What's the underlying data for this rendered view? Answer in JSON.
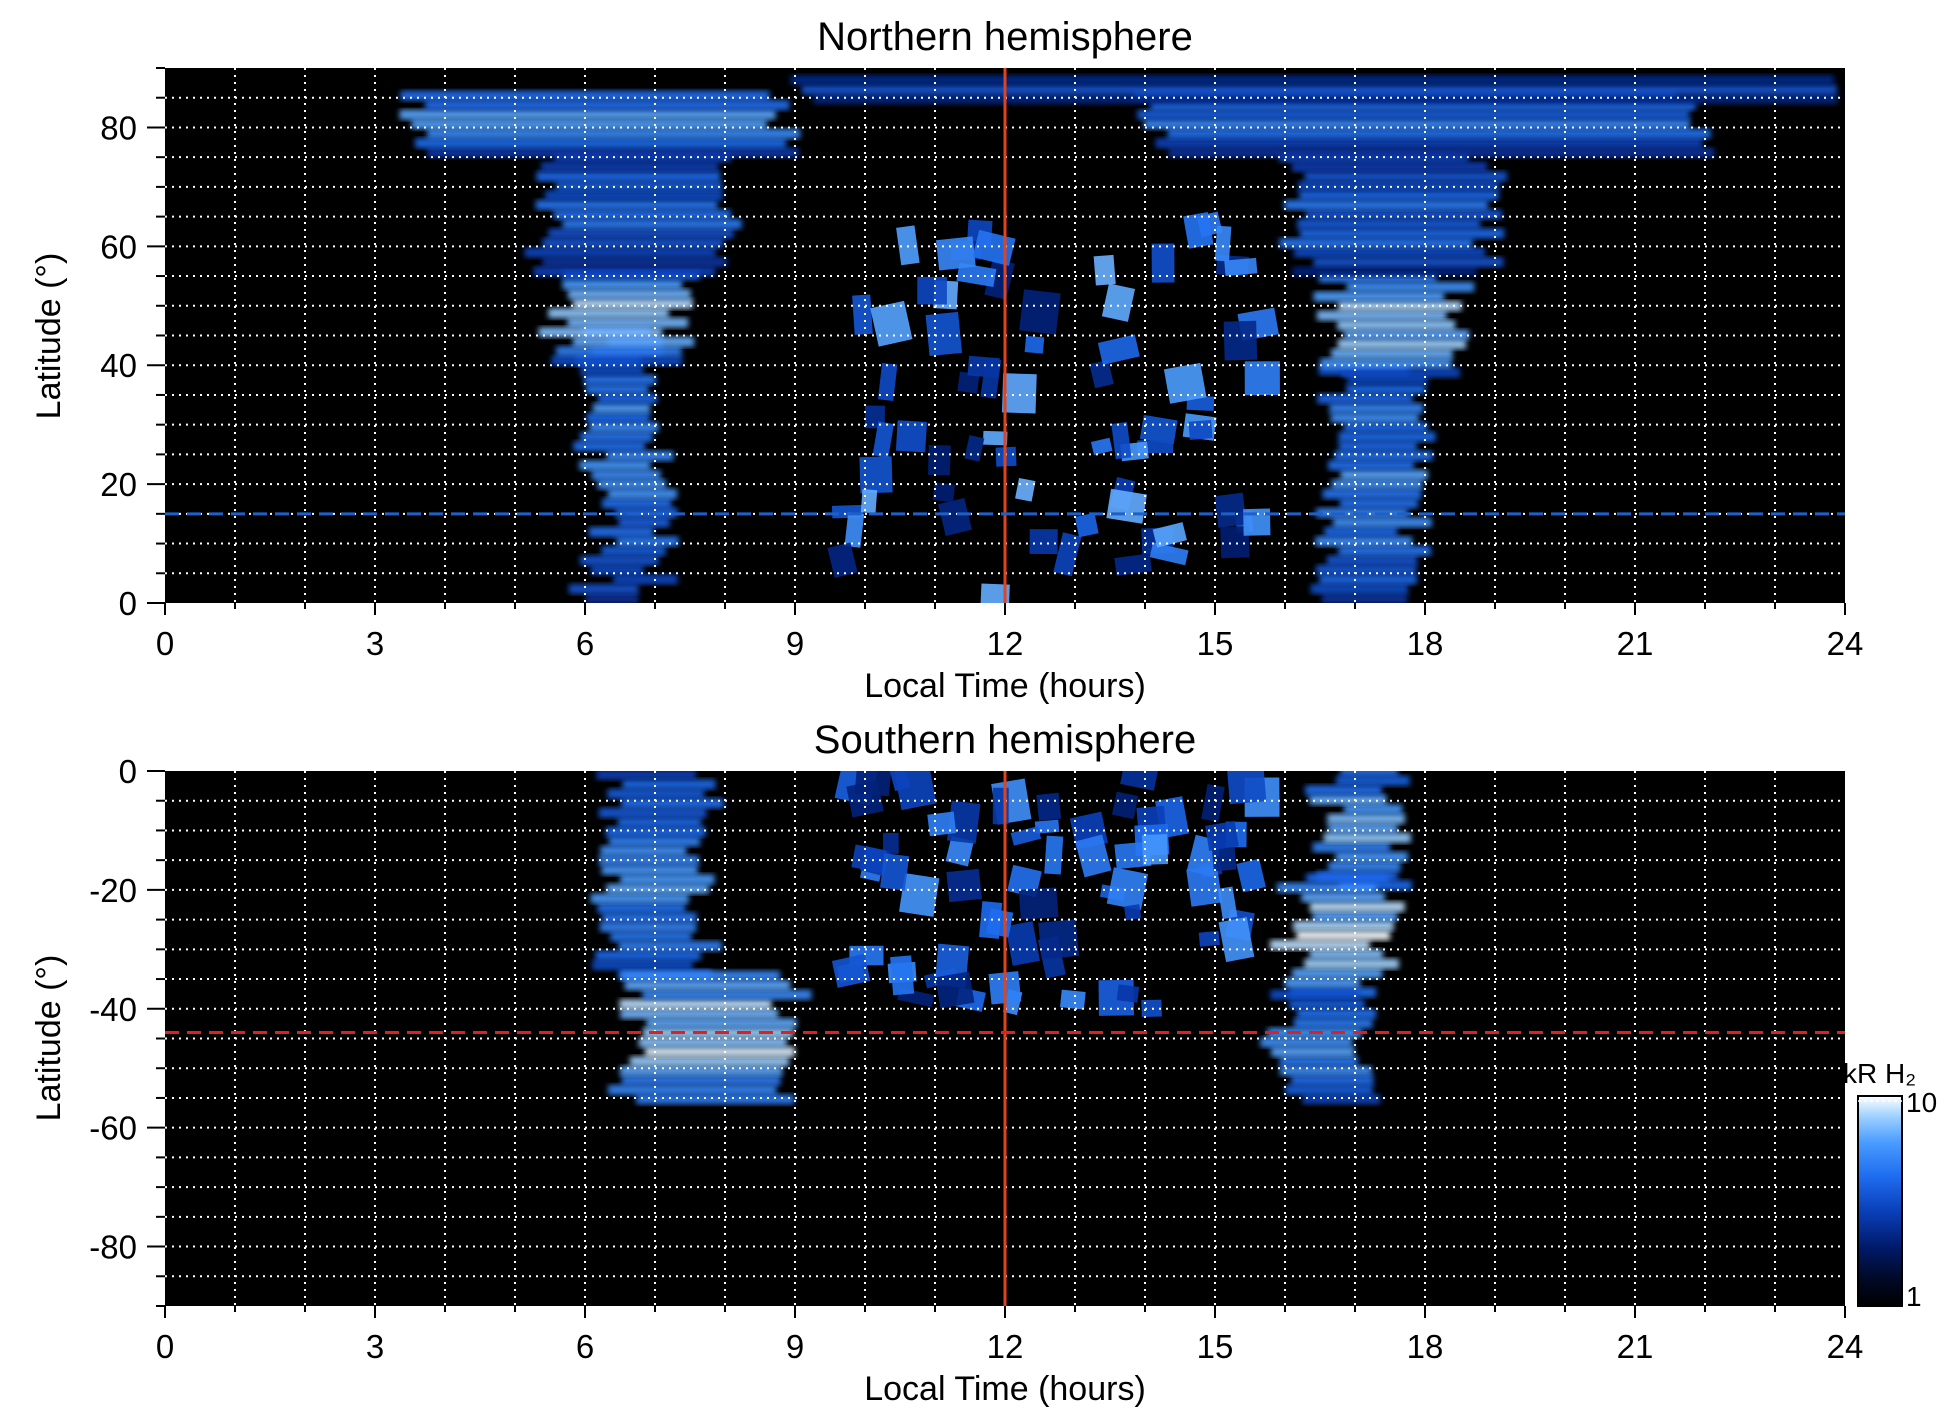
{
  "colors": {
    "background": "#000000",
    "grid": "#ffffff",
    "noon_line": "#e0431f",
    "north_dashed_line": "#1e5fc8",
    "south_dashed_line": "#e02020",
    "colormap": [
      "#000000",
      "#000a2a",
      "#001a6a",
      "#0a3fb8",
      "#1f6df0",
      "#4a9cff",
      "#9cd0ff",
      "#ffffff"
    ]
  },
  "colorbar": {
    "label": "kR H₂",
    "min_label": "1",
    "max_label": "10",
    "min": 1,
    "max": 10,
    "scale": "log"
  },
  "chart_data": [
    {
      "type": "heatmap",
      "title": "Northern hemisphere",
      "xlabel": "Local Time (hours)",
      "ylabel": "Latitude (°)",
      "xlim": [
        0,
        24
      ],
      "ylim": [
        0,
        90
      ],
      "xticks": [
        "0",
        "3",
        "6",
        "9",
        "12",
        "15",
        "18",
        "21",
        "24"
      ],
      "yticks": [
        "0",
        "20",
        "40",
        "60",
        "80"
      ],
      "grid": true,
      "reference_lines": [
        {
          "orientation": "vertical",
          "x": 12,
          "style": "solid",
          "color": "#e0431f"
        },
        {
          "orientation": "horizontal",
          "y": 15,
          "style": "dashed",
          "color": "#1e5fc8"
        }
      ],
      "emission_regions": [
        {
          "lt": [
            6.0,
            7.2
          ],
          "lat": [
            0,
            45
          ],
          "peak_kR": 5
        },
        {
          "lt": [
            5.5,
            7.5
          ],
          "lat": [
            40,
            55
          ],
          "peak_kR": 7
        },
        {
          "lt": [
            5.2,
            8.0
          ],
          "lat": [
            55,
            75
          ],
          "peak_kR": 4
        },
        {
          "lt": [
            3.5,
            9.0
          ],
          "lat": [
            75,
            86
          ],
          "peak_kR": 5
        },
        {
          "lt": [
            9.5,
            15.5
          ],
          "lat": [
            0,
            65
          ],
          "peak_kR": 6,
          "patchy": true
        },
        {
          "lt": [
            16.5,
            18.0
          ],
          "lat": [
            0,
            40
          ],
          "peak_kR": 5
        },
        {
          "lt": [
            16.5,
            18.5
          ],
          "lat": [
            38,
            55
          ],
          "peak_kR": 7
        },
        {
          "lt": [
            16.0,
            19.0
          ],
          "lat": [
            55,
            75
          ],
          "peak_kR": 4
        },
        {
          "lt": [
            14.0,
            22.0
          ],
          "lat": [
            75,
            86
          ],
          "peak_kR": 4
        },
        {
          "lt": [
            9.0,
            24.0
          ],
          "lat": [
            84,
            88
          ],
          "peak_kR": 3
        }
      ]
    },
    {
      "type": "heatmap",
      "title": "Southern hemisphere",
      "xlabel": "Local Time (hours)",
      "ylabel": "Latitude (°)",
      "xlim": [
        0,
        24
      ],
      "ylim": [
        -90,
        0
      ],
      "xticks": [
        "0",
        "3",
        "6",
        "9",
        "12",
        "15",
        "18",
        "21",
        "24"
      ],
      "yticks": [
        "0",
        "-20",
        "-40",
        "-60",
        "-80"
      ],
      "grid": true,
      "reference_lines": [
        {
          "orientation": "vertical",
          "x": 12,
          "style": "solid",
          "color": "#e0431f"
        },
        {
          "orientation": "horizontal",
          "y": -44,
          "style": "dashed",
          "color": "#e02020"
        }
      ],
      "emission_regions": [
        {
          "lt": [
            6.2,
            7.8
          ],
          "lat": [
            -35,
            0
          ],
          "peak_kR": 5
        },
        {
          "lt": [
            6.5,
            9.0
          ],
          "lat": [
            -56,
            -35
          ],
          "peak_kR": 8
        },
        {
          "lt": [
            9.5,
            15.5
          ],
          "lat": [
            -40,
            0
          ],
          "peak_kR": 5,
          "patchy": true
        },
        {
          "lt": [
            16.5,
            17.8
          ],
          "lat": [
            -20,
            0
          ],
          "peak_kR": 6
        },
        {
          "lt": [
            16.0,
            17.5
          ],
          "lat": [
            -38,
            -18
          ],
          "peak_kR": 8
        },
        {
          "lt": [
            15.8,
            17.2
          ],
          "lat": [
            -56,
            -38
          ],
          "peak_kR": 5
        }
      ]
    }
  ]
}
